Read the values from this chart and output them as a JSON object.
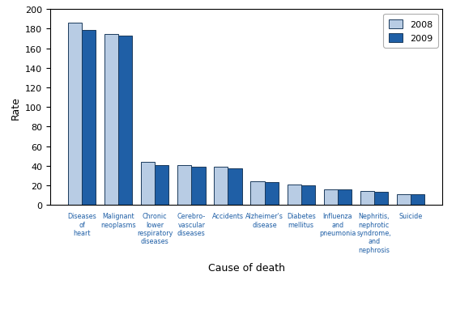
{
  "categories": [
    "Diseases\nof\nheart",
    "Malignant\nneoplasms",
    "Chronic\nlower\nrespiratory\ndiseases",
    "Cerebro-\nvascular\ndiseases",
    "Accidents",
    "Alzheimer's\ndisease",
    "Diabetes\nmellitus",
    "Influenza\nand\npneumonia",
    "Nephritis,\nnephrotic\nsyndrome,\nand\nnephrosis",
    "Suicide"
  ],
  "values_2008": [
    186,
    175,
    44,
    41,
    39,
    24,
    21,
    16,
    14,
    11
  ],
  "values_2009": [
    179,
    173,
    41,
    39,
    37,
    23,
    20,
    16,
    13,
    11
  ],
  "color_2008": "#b8cce4",
  "color_2009": "#1f5fa6",
  "bar_edgecolor": "#1a3a5c",
  "ylabel": "Rate",
  "xlabel": "Cause of death",
  "ylim": [
    0,
    200
  ],
  "yticks": [
    0,
    20,
    40,
    60,
    80,
    100,
    120,
    140,
    160,
    180,
    200
  ],
  "legend_labels": [
    "2008",
    "2009"
  ],
  "legend_loc": "upper right",
  "label_color": "#1f5fa6",
  "xlabel_color": "#000000",
  "ylabel_color": "#000000",
  "figsize": [
    5.63,
    4.1
  ],
  "dpi": 100
}
